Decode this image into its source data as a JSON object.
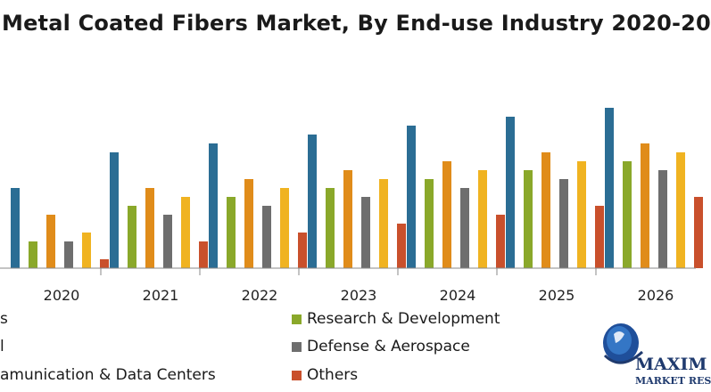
{
  "chart_data": {
    "type": "bar",
    "title": "Metal Coated Fibers Market, By End-use Industry 2020-20",
    "categories": [
      "2020",
      "2021",
      "2022",
      "2023",
      "2024",
      "2025",
      "2026"
    ],
    "series": [
      {
        "name": "s",
        "color": "#2b6d94",
        "values": [
          9,
          13,
          14,
          15,
          16,
          17,
          18
        ]
      },
      {
        "name": "Research & Development",
        "color": "#8aa82a",
        "values": [
          3,
          7,
          8,
          9,
          10,
          11,
          12
        ]
      },
      {
        "name": "l",
        "color": "#e08c1a",
        "values": [
          6,
          9,
          10,
          11,
          12,
          13,
          14
        ]
      },
      {
        "name": "Defense & Aerospace",
        "color": "#6e6e6e",
        "values": [
          3,
          6,
          7,
          8,
          9,
          10,
          11
        ]
      },
      {
        "name": "amunication & Data Centers",
        "color": "#f0b321",
        "values": [
          4,
          8,
          9,
          10,
          11,
          12,
          13
        ]
      },
      {
        "name": "Others",
        "color": "#c9502c",
        "values": [
          1,
          3,
          4,
          5,
          6,
          7,
          8
        ]
      }
    ],
    "ylim": [
      0,
      18
    ],
    "xlabel": "",
    "ylabel": "",
    "legend": "bottom"
  },
  "logo": {
    "text": "MAXIM",
    "subtext": "MARKET RES"
  }
}
